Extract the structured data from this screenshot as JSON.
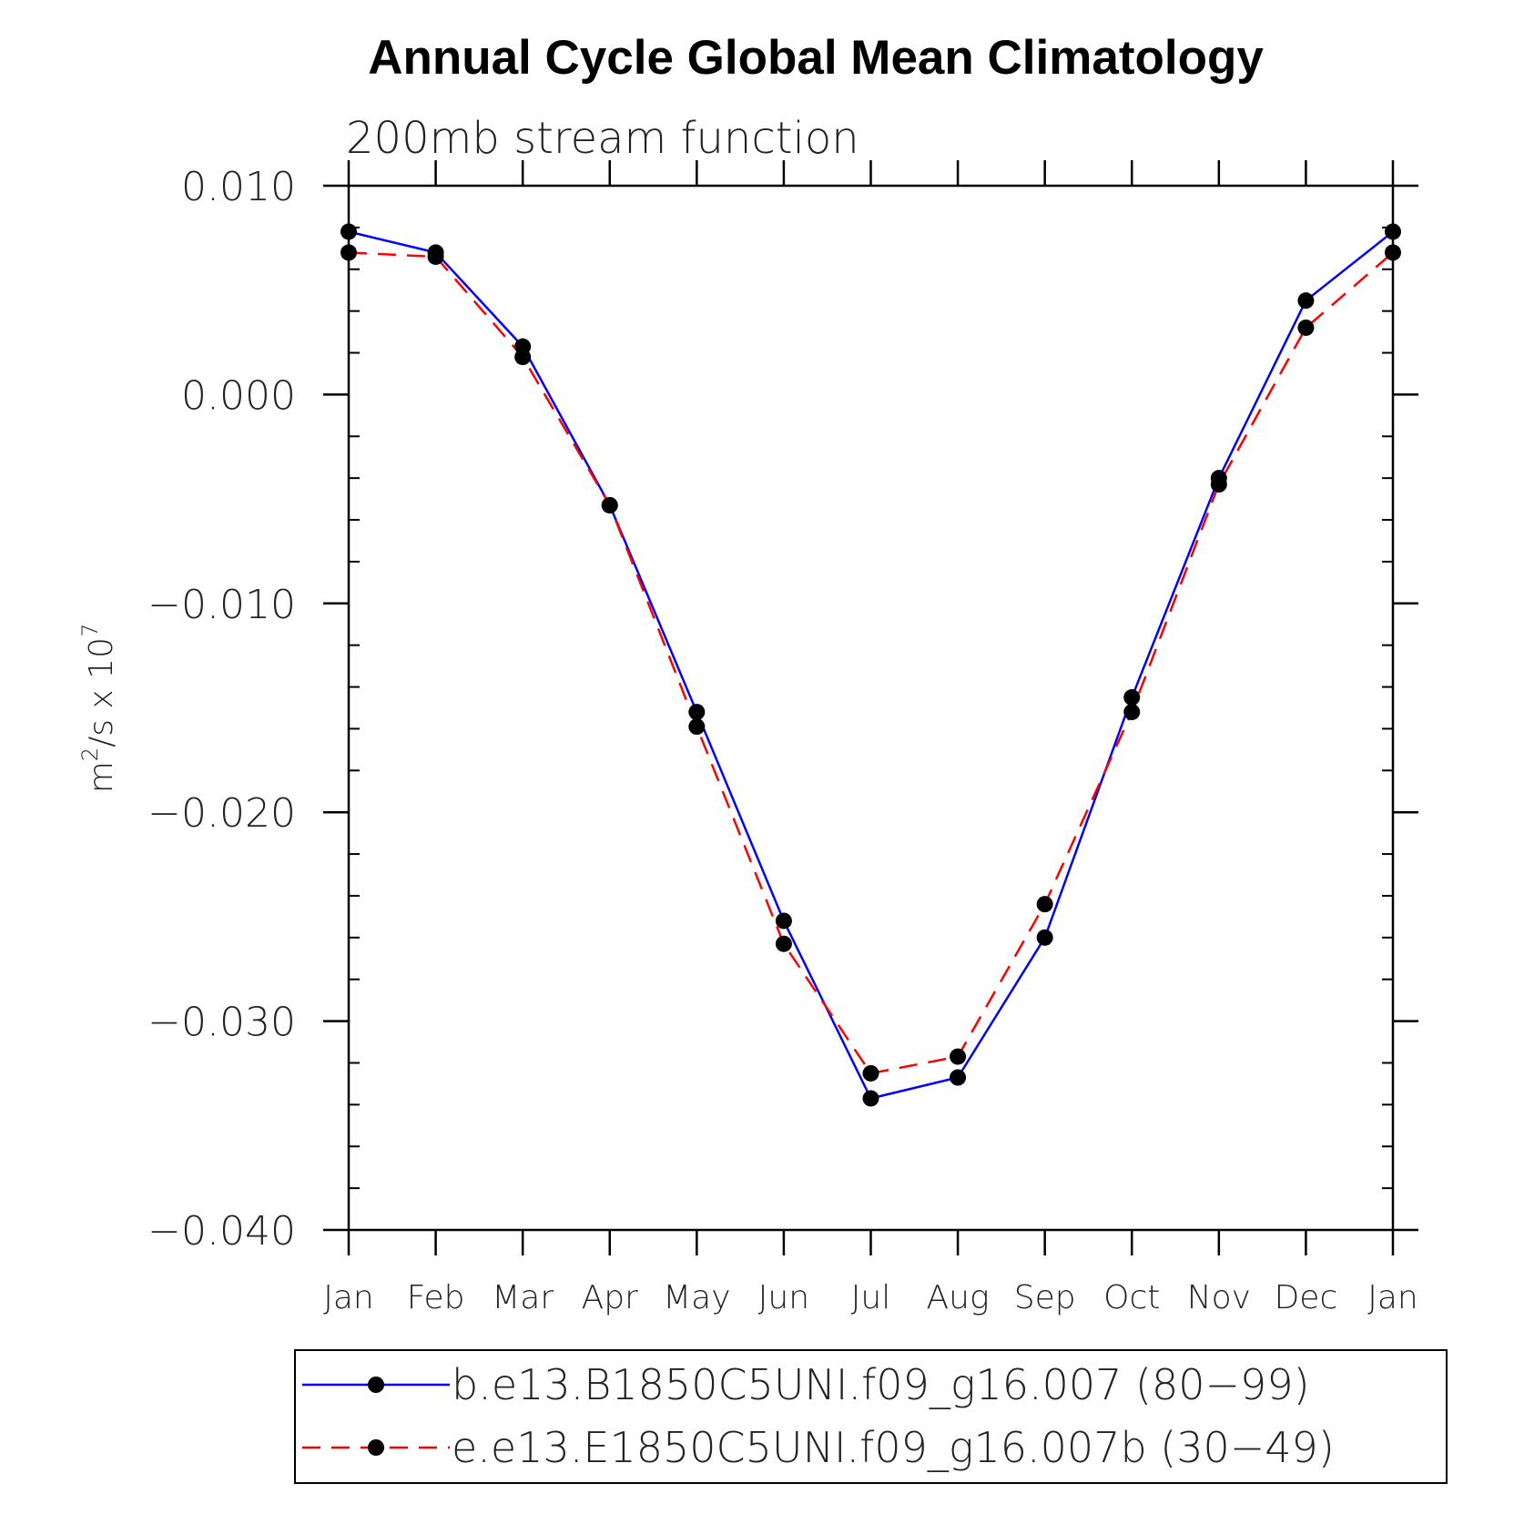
{
  "chart_data": {
    "type": "line",
    "title": "Annual Cycle Global Mean Climatology",
    "subtitle": "200mb stream function",
    "ylabel": {
      "base": "m",
      "sup1": "2",
      "mid": "/s x 10",
      "sup2": "7"
    },
    "xlabel": "",
    "ylim": [
      -0.04,
      0.01
    ],
    "yticks": [
      0.01,
      0.0,
      -0.01,
      -0.02,
      -0.03,
      -0.04
    ],
    "ytick_labels": [
      "0.010",
      "0.000",
      "−0.010",
      "−0.020",
      "−0.030",
      "−0.040"
    ],
    "categories": [
      "Jan",
      "Feb",
      "Mar",
      "Apr",
      "May",
      "Jun",
      "Jul",
      "Aug",
      "Sep",
      "Oct",
      "Nov",
      "Dec",
      "Jan"
    ],
    "series": [
      {
        "name": "b.e13.B1850C5UNI.f09_g16.007 (80−99)",
        "color": "#0000ff",
        "dash": "solid",
        "values": [
          0.0078,
          0.0068,
          0.0023,
          -0.0053,
          -0.0152,
          -0.0252,
          -0.0337,
          -0.0327,
          -0.026,
          -0.0145,
          -0.004,
          0.0045,
          0.0078
        ]
      },
      {
        "name": "e.e13.E1850C5UNI.f09_g16.007b (30−49)",
        "color": "#ff0000",
        "dash": "dashed",
        "values": [
          0.0068,
          0.0066,
          0.0018,
          -0.0053,
          -0.0159,
          -0.0263,
          -0.0325,
          -0.0317,
          -0.0244,
          -0.0152,
          -0.0043,
          0.0032,
          0.0068
        ]
      }
    ],
    "legend_position": "bottom"
  }
}
